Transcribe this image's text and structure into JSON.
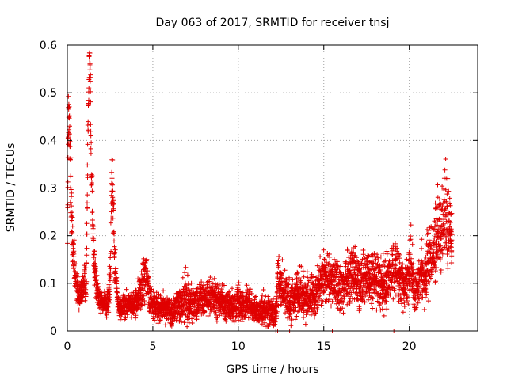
{
  "chart_data": {
    "type": "scatter",
    "title": "Day 063 of 2017, SRMTID for receiver tnsj",
    "xlabel": "GPS time / hours",
    "ylabel": "SRMTID / TECUs",
    "xlim": [
      0,
      24
    ],
    "ylim": [
      0,
      0.6
    ],
    "xticks": [
      0,
      5,
      10,
      15,
      20
    ],
    "yticks": [
      0,
      0.1,
      0.2,
      0.3,
      0.4,
      0.5,
      0.6
    ],
    "xtick_labels": [
      "0",
      "5",
      "10",
      "15",
      "20"
    ],
    "ytick_labels": [
      "0",
      "0.1",
      "0.2",
      "0.3",
      "0.4",
      "0.5",
      "0.6"
    ],
    "grid": true,
    "marker": "+",
    "color": "#e00000",
    "series": [
      {
        "name": "SRMTID",
        "anchors_x": [
          0,
          0.05,
          0.1,
          0.15,
          0.2,
          0.25,
          0.3,
          0.35,
          0.45,
          0.6,
          0.8,
          1.0,
          1.1,
          1.2,
          1.28,
          1.3,
          1.33,
          1.36,
          1.4,
          1.45,
          1.5,
          1.6,
          1.7,
          1.9,
          2.1,
          2.3,
          2.5,
          2.6,
          2.65,
          2.7,
          2.75,
          2.85,
          3.0,
          3.3,
          3.6,
          4.0,
          4.3,
          4.5,
          4.7,
          4.85,
          5.2,
          5.6,
          6.0,
          6.4,
          6.7,
          6.9,
          7.1,
          7.5,
          8.0,
          8.5,
          9.0,
          9.5,
          10.0,
          10.3,
          10.5,
          10.8,
          11.1,
          11.5,
          11.9,
          12.2,
          12.3,
          12.5,
          12.8,
          13.0,
          13.3,
          13.6,
          14.0,
          14.5,
          14.8,
          15.0,
          15.3,
          15.6,
          15.9,
          16.2,
          16.5,
          16.8,
          17.1,
          17.4,
          17.7,
          18.0,
          18.3,
          18.6,
          18.9,
          19.2,
          19.5,
          19.7,
          19.9,
          20.0,
          20.1,
          20.3,
          20.5,
          20.7,
          20.9,
          21.1,
          21.3,
          21.5,
          21.7,
          21.9,
          22.1,
          22.3,
          22.5
        ],
        "anchors_y": [
          0.15,
          0.43,
          0.47,
          0.42,
          0.3,
          0.22,
          0.19,
          0.15,
          0.12,
          0.08,
          0.07,
          0.1,
          0.08,
          0.4,
          0.55,
          0.58,
          0.56,
          0.48,
          0.33,
          0.27,
          0.2,
          0.13,
          0.09,
          0.06,
          0.06,
          0.05,
          0.1,
          0.33,
          0.3,
          0.25,
          0.15,
          0.1,
          0.05,
          0.05,
          0.06,
          0.06,
          0.08,
          0.11,
          0.1,
          0.06,
          0.05,
          0.05,
          0.04,
          0.05,
          0.06,
          0.07,
          0.06,
          0.06,
          0.07,
          0.07,
          0.06,
          0.05,
          0.06,
          0.05,
          0.06,
          0.05,
          0.04,
          0.05,
          0.04,
          0.04,
          0.1,
          0.1,
          0.08,
          0.06,
          0.07,
          0.08,
          0.07,
          0.08,
          0.1,
          0.12,
          0.11,
          0.1,
          0.09,
          0.1,
          0.12,
          0.13,
          0.1,
          0.11,
          0.1,
          0.12,
          0.1,
          0.09,
          0.12,
          0.13,
          0.11,
          0.09,
          0.11,
          0.13,
          0.15,
          0.07,
          0.09,
          0.14,
          0.1,
          0.16,
          0.14,
          0.19,
          0.23,
          0.2,
          0.25,
          0.22,
          0.2
        ],
        "spread_y": [
          0.02,
          0.05,
          0.06,
          0.06,
          0.05,
          0.04,
          0.04,
          0.04,
          0.03,
          0.02,
          0.02,
          0.03,
          0.02,
          0.06,
          0.03,
          0.02,
          0.03,
          0.05,
          0.05,
          0.05,
          0.04,
          0.03,
          0.02,
          0.015,
          0.015,
          0.015,
          0.03,
          0.05,
          0.05,
          0.05,
          0.04,
          0.03,
          0.015,
          0.015,
          0.02,
          0.02,
          0.03,
          0.04,
          0.03,
          0.02,
          0.02,
          0.02,
          0.02,
          0.02,
          0.03,
          0.04,
          0.03,
          0.025,
          0.025,
          0.025,
          0.025,
          0.02,
          0.025,
          0.02,
          0.025,
          0.02,
          0.02,
          0.02,
          0.02,
          0.02,
          0.03,
          0.03,
          0.03,
          0.03,
          0.03,
          0.03,
          0.03,
          0.03,
          0.03,
          0.035,
          0.035,
          0.035,
          0.035,
          0.035,
          0.04,
          0.04,
          0.04,
          0.04,
          0.04,
          0.04,
          0.04,
          0.035,
          0.04,
          0.04,
          0.035,
          0.035,
          0.04,
          0.04,
          0.04,
          0.03,
          0.03,
          0.04,
          0.04,
          0.05,
          0.05,
          0.06,
          0.07,
          0.06,
          0.06,
          0.06,
          0.05
        ],
        "baseline_x": [
          12.2,
          12.3,
          13.0,
          15.5,
          19.1
        ]
      }
    ]
  }
}
